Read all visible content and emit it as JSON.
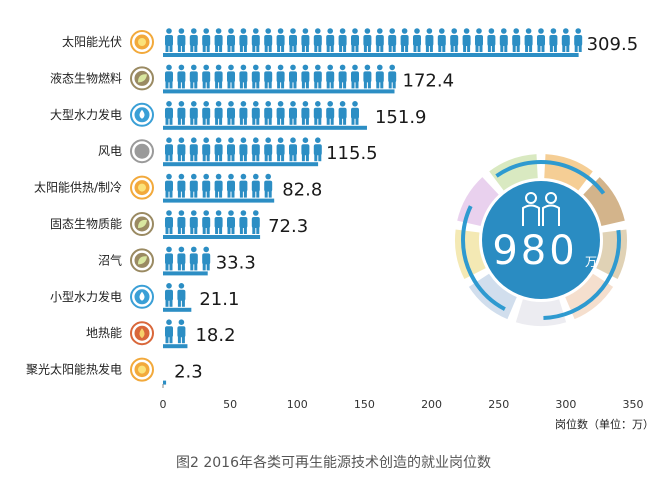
{
  "chart_data": {
    "type": "bar",
    "orientation": "horizontal",
    "categories": [
      "太阳能光伏",
      "液态生物燃料",
      "大型水力发电",
      "风电",
      "太阳能供热/制冷",
      "固态生物质能",
      "沼气",
      "小型水力发电",
      "地热能",
      "聚光太阳能热发电"
    ],
    "values": [
      309.5,
      172.4,
      151.9,
      115.5,
      82.8,
      72.3,
      33.3,
      21.1,
      18.2,
      2.3
    ],
    "value_labels": [
      "309.5",
      "172.4",
      "151.9",
      "115.5",
      "82.8",
      "72.3",
      "33.3",
      "21.1",
      "18.2",
      "2.3"
    ],
    "icons": [
      "sun-icon",
      "leaf-icon",
      "water-drop-icon",
      "wind-icon",
      "sun-icon",
      "leaf-icon",
      "leaf-icon",
      "water-drop-icon",
      "flame-icon",
      "sun-icon"
    ],
    "xlim": [
      0,
      350
    ],
    "xticks": [
      0,
      50,
      100,
      150,
      200,
      250,
      300,
      350
    ],
    "xlabel": "岗位数（单位：万）",
    "bar_color": "#2c8ec4",
    "grid": false
  },
  "total": {
    "value": "980",
    "unit": "万"
  },
  "caption": "图2 2016年各类可再生能源技术创造的就业岗位数"
}
